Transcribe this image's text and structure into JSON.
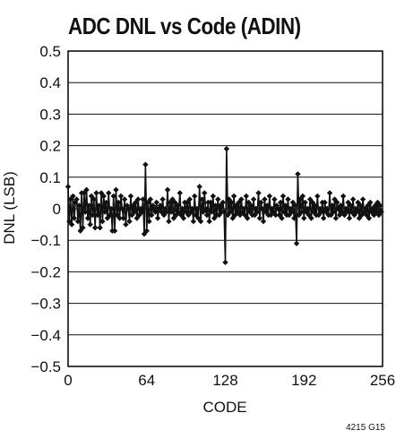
{
  "chart_data": {
    "type": "line",
    "title": "ADC DNL vs Code (ADIN)",
    "xlabel": "CODE",
    "ylabel": "DNL (LSB)",
    "xlim": [
      0,
      256
    ],
    "ylim": [
      -0.5,
      0.5
    ],
    "xticks": [
      0,
      64,
      128,
      192,
      256
    ],
    "xtick_labels": [
      "0",
      "64",
      "128",
      "192",
      "256"
    ],
    "yticks": [
      0.5,
      0.4,
      0.3,
      0.2,
      0.1,
      0,
      -0.1,
      -0.2,
      -0.3,
      -0.4,
      -0.5
    ],
    "ytick_labels": [
      "0.5",
      "0.4",
      "0.3",
      "0.2",
      "0.1",
      "0",
      "−0.1",
      "−0.2",
      "−0.3",
      "−0.4",
      "−0.5"
    ],
    "grid": "horizontal",
    "marker": "diamond",
    "series": [
      {
        "x": [
          0,
          1,
          2,
          3,
          4,
          5,
          6,
          7,
          8,
          9,
          10,
          11,
          12,
          13,
          14,
          15,
          16,
          17,
          18,
          19,
          20,
          21,
          22,
          23,
          24,
          25,
          26,
          27,
          28,
          29,
          30,
          31,
          32,
          33,
          34,
          35,
          36,
          37,
          38,
          39,
          40,
          41,
          42,
          43,
          44,
          45,
          46,
          47,
          48,
          49,
          50,
          51,
          52,
          53,
          54,
          55,
          56,
          57,
          58,
          59,
          60,
          61,
          62,
          63,
          64,
          65,
          66,
          67,
          68,
          69,
          70,
          71,
          72,
          73,
          74,
          75,
          76,
          77,
          78,
          79,
          80,
          81,
          82,
          83,
          84,
          85,
          86,
          87,
          88,
          89,
          90,
          91,
          92,
          93,
          94,
          95,
          96,
          97,
          98,
          99,
          100,
          101,
          102,
          103,
          104,
          105,
          106,
          107,
          108,
          109,
          110,
          111,
          112,
          113,
          114,
          115,
          116,
          117,
          118,
          119,
          120,
          121,
          122,
          123,
          124,
          125,
          126,
          127,
          128,
          129,
          130,
          131,
          132,
          133,
          134,
          135,
          136,
          137,
          138,
          139,
          140,
          141,
          142,
          143,
          144,
          145,
          146,
          147,
          148,
          149,
          150,
          151,
          152,
          153,
          154,
          155,
          156,
          157,
          158,
          159,
          160,
          161,
          162,
          163,
          164,
          165,
          166,
          167,
          168,
          169,
          170,
          171,
          172,
          173,
          174,
          175,
          176,
          177,
          178,
          179,
          180,
          181,
          182,
          183,
          184,
          185,
          186,
          187,
          188,
          189,
          190,
          191,
          192,
          193,
          194,
          195,
          196,
          197,
          198,
          199,
          200,
          201,
          202,
          203,
          204,
          205,
          206,
          207,
          208,
          209,
          210,
          211,
          212,
          213,
          214,
          215,
          216,
          217,
          218,
          219,
          220,
          221,
          222,
          223,
          224,
          225,
          226,
          227,
          228,
          229,
          230,
          231,
          232,
          233,
          234,
          235,
          236,
          237,
          238,
          239,
          240,
          241,
          242,
          243,
          244,
          245,
          246,
          247,
          248,
          249,
          250,
          251,
          252,
          253,
          254,
          255
        ],
        "y": [
          0.07,
          -0.04,
          0.03,
          -0.05,
          0.04,
          -0.03,
          0.02,
          0.03,
          -0.04,
          0.01,
          -0.07,
          0.05,
          -0.06,
          0.05,
          -0.01,
          0.06,
          -0.03,
          0.01,
          -0.05,
          0.04,
          -0.02,
          0.03,
          -0.06,
          0.05,
          -0.02,
          0.01,
          -0.06,
          0.05,
          -0.04,
          0.04,
          -0.01,
          0.02,
          -0.03,
          0.05,
          -0.02,
          0.0,
          -0.07,
          0.04,
          -0.07,
          0.06,
          -0.02,
          0.02,
          -0.03,
          0.04,
          0.0,
          -0.03,
          0.03,
          -0.05,
          0.01,
          0.0,
          -0.04,
          0.04,
          -0.02,
          0.01,
          -0.01,
          0.02,
          -0.03,
          0.03,
          -0.02,
          0.0,
          -0.01,
          0.03,
          -0.08,
          0.14,
          -0.07,
          0.02,
          -0.04,
          0.03,
          -0.02,
          0.01,
          0.0,
          -0.01,
          0.02,
          -0.03,
          0.0,
          0.01,
          -0.01,
          0.03,
          -0.02,
          0.0,
          -0.01,
          0.06,
          -0.04,
          0.02,
          -0.01,
          0.03,
          -0.03,
          0.02,
          -0.02,
          0.01,
          -0.01,
          0.05,
          -0.02,
          0.0,
          -0.03,
          0.02,
          -0.01,
          0.02,
          -0.02,
          0.03,
          -0.01,
          0.0,
          -0.04,
          0.04,
          -0.02,
          0.0,
          -0.03,
          0.07,
          -0.04,
          0.03,
          -0.01,
          0.05,
          0.0,
          -0.02,
          0.02,
          -0.04,
          0.02,
          -0.01,
          0.04,
          -0.03,
          0.01,
          -0.02,
          0.03,
          -0.02,
          0.01,
          -0.01,
          0.02,
          -0.01,
          -0.17,
          0.19,
          -0.02,
          0.03,
          -0.01,
          0.02,
          -0.03,
          0.04,
          -0.02,
          0.01,
          -0.01,
          0.02,
          -0.02,
          0.03,
          -0.01,
          0.0,
          -0.02,
          0.04,
          -0.03,
          0.02,
          -0.01,
          0.01,
          -0.02,
          0.03,
          -0.02,
          0.0,
          -0.01,
          0.05,
          -0.03,
          0.02,
          0.0,
          -0.04,
          0.03,
          -0.01,
          0.01,
          -0.02,
          0.04,
          -0.02,
          0.0,
          -0.01,
          0.03,
          -0.02,
          0.01,
          0.0,
          -0.02,
          0.02,
          -0.03,
          0.04,
          -0.01,
          0.01,
          -0.02,
          0.03,
          -0.02,
          0.0,
          -0.01,
          0.02,
          -0.03,
          0.01,
          -0.11,
          0.11,
          -0.02,
          0.03,
          -0.01,
          0.04,
          -0.03,
          0.02,
          -0.01,
          0.0,
          -0.02,
          0.03,
          -0.03,
          0.02,
          -0.01,
          0.01,
          -0.02,
          0.04,
          -0.02,
          0.0,
          -0.01,
          0.02,
          -0.03,
          0.02,
          -0.01,
          0.0,
          -0.02,
          0.05,
          -0.02,
          0.01,
          -0.01,
          0.03,
          -0.03,
          0.02,
          0.0,
          -0.02,
          0.01,
          -0.01,
          0.04,
          -0.02,
          0.0,
          -0.01,
          0.02,
          -0.03,
          0.01,
          -0.01,
          0.03,
          -0.02,
          0.0,
          -0.01,
          0.02,
          -0.03,
          0.01,
          -0.02,
          0.03,
          -0.01,
          0.0,
          -0.02,
          0.01,
          -0.03,
          0.02,
          -0.01,
          0.0,
          -0.02,
          0.01,
          -0.01,
          0.02,
          -0.02,
          0.01,
          -0.01
        ]
      }
    ]
  },
  "footnote": "4215 G15"
}
